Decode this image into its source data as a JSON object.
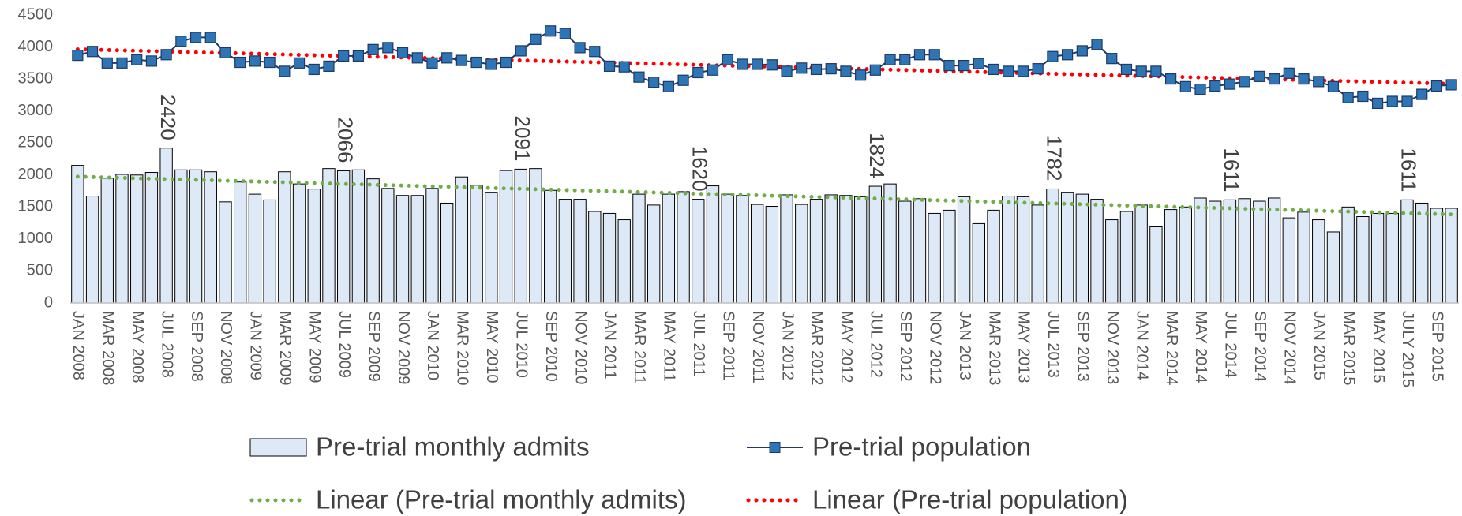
{
  "chart_data": {
    "type": "bar_line",
    "categories": [
      "JAN 2008",
      null,
      "MAR 2008",
      null,
      "MAY 2008",
      null,
      "JUL 2008",
      null,
      "SEP 2008",
      null,
      "NOV 2008",
      null,
      "JAN 2009",
      null,
      "MAR 2009",
      null,
      "MAY 2009",
      null,
      "JUL 2009",
      null,
      "SEP 2009",
      null,
      "NOV 2009",
      null,
      "JAN 2010",
      null,
      "MAR 2010",
      null,
      "MAY 2010",
      null,
      "JUL 2010",
      null,
      "SEP 2010",
      null,
      "NOV 2010",
      null,
      "JAN 2011",
      null,
      "MAR 2011",
      null,
      "MAY 2011",
      null,
      "JUL 2011",
      null,
      "SEP 2011",
      null,
      "NOV 2011",
      null,
      "JAN 2012",
      null,
      "MAR 2012",
      null,
      "MAY 2012",
      null,
      "JUL 2012",
      null,
      "SEP 2012",
      null,
      "NOV 2012",
      null,
      "JAN 2013",
      null,
      "MAR 2013",
      null,
      "MAY 2013",
      null,
      "JUL 2013",
      null,
      "SEP 2013",
      null,
      "NOV 2013",
      null,
      "JAN 2014",
      null,
      "MAR 2014",
      null,
      "MAY 2014",
      null,
      "JUL 2014",
      null,
      "SEP 2014",
      null,
      "NOV 2014",
      null,
      "JAN 2015",
      null,
      "MAR 2015",
      null,
      "MAY 2015",
      null,
      "JULY 2015",
      null,
      "SEP 2015",
      null
    ],
    "series": [
      {
        "name": "Pre-trial monthly admits",
        "type": "bar",
        "color": "#dde9f7",
        "edge": "#000000",
        "values": [
          2150,
          1670,
          1950,
          2010,
          2000,
          2040,
          2420,
          2080,
          2080,
          2050,
          1580,
          1890,
          1700,
          1610,
          2050,
          1860,
          1780,
          2100,
          2066,
          2080,
          1940,
          1790,
          1680,
          1680,
          1790,
          1560,
          1970,
          1840,
          1730,
          2070,
          2091,
          2100,
          1760,
          1620,
          1620,
          1430,
          1400,
          1300,
          1700,
          1530,
          1700,
          1740,
          1620,
          1830,
          1700,
          1680,
          1540,
          1510,
          1690,
          1540,
          1620,
          1690,
          1680,
          1660,
          1824,
          1860,
          1590,
          1630,
          1400,
          1450,
          1660,
          1240,
          1450,
          1670,
          1660,
          1530,
          1782,
          1730,
          1700,
          1620,
          1300,
          1430,
          1530,
          1190,
          1460,
          1500,
          1640,
          1590,
          1611,
          1630,
          1590,
          1640,
          1330,
          1420,
          1300,
          1110,
          1500,
          1350,
          1400,
          1400,
          1611,
          1560,
          1480,
          1480
        ],
        "value_labels": [
          null,
          null,
          null,
          null,
          null,
          null,
          "2420",
          null,
          null,
          null,
          null,
          null,
          null,
          null,
          null,
          null,
          null,
          null,
          "2066",
          null,
          null,
          null,
          null,
          null,
          null,
          null,
          null,
          null,
          null,
          null,
          "2091",
          null,
          null,
          null,
          null,
          null,
          null,
          null,
          null,
          null,
          null,
          null,
          "1620",
          null,
          null,
          null,
          null,
          null,
          null,
          null,
          null,
          null,
          null,
          null,
          "1824",
          null,
          null,
          null,
          null,
          null,
          null,
          null,
          null,
          null,
          null,
          null,
          "1782",
          null,
          null,
          null,
          null,
          null,
          null,
          null,
          null,
          null,
          null,
          null,
          "1611",
          null,
          null,
          null,
          null,
          null,
          null,
          null,
          null,
          null,
          null,
          null,
          "1611",
          null,
          null,
          null
        ],
        "trendline": {
          "name": "Linear (Pre-trial monthly admits)",
          "color": "#70ad47"
        }
      },
      {
        "name": "Pre-trial population",
        "type": "line",
        "color": "#1f3864",
        "marker_color": "#2e75b6",
        "values": [
          3870,
          3930,
          3750,
          3750,
          3800,
          3780,
          3880,
          4090,
          4150,
          4150,
          3910,
          3760,
          3780,
          3760,
          3620,
          3750,
          3650,
          3700,
          3860,
          3860,
          3960,
          3990,
          3910,
          3830,
          3750,
          3830,
          3790,
          3760,
          3730,
          3760,
          3940,
          4120,
          4250,
          4210,
          3990,
          3930,
          3700,
          3690,
          3530,
          3450,
          3380,
          3480,
          3600,
          3640,
          3800,
          3730,
          3730,
          3720,
          3620,
          3670,
          3650,
          3660,
          3620,
          3560,
          3640,
          3800,
          3800,
          3880,
          3880,
          3710,
          3710,
          3740,
          3650,
          3620,
          3620,
          3660,
          3850,
          3880,
          3940,
          4040,
          3820,
          3650,
          3620,
          3620,
          3500,
          3380,
          3340,
          3390,
          3420,
          3460,
          3540,
          3500,
          3590,
          3500,
          3460,
          3380,
          3210,
          3230,
          3120,
          3150,
          3150,
          3260,
          3390,
          3410
        ],
        "trendline": {
          "name": "Linear (Pre-trial population)",
          "color": "#ff0000"
        }
      }
    ],
    "ylim": [
      0,
      4500
    ],
    "yticks": [
      0,
      500,
      1000,
      1500,
      2000,
      2500,
      3000,
      3500,
      4000,
      4500
    ],
    "grid": false,
    "legend": "bottom"
  }
}
